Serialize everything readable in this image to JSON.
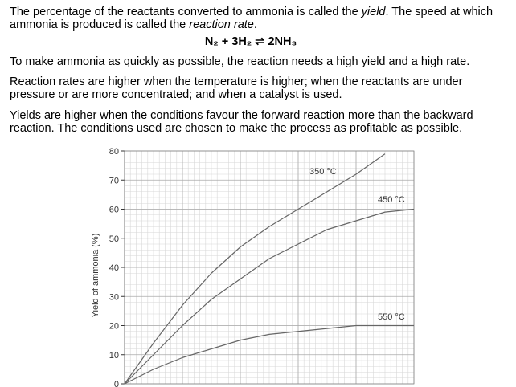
{
  "intro": [
    "The percentage of the reactants converted to ammonia is called the ",
    "yield",
    ". The speed at which",
    "ammonia is produced is called the ",
    "reaction rate",
    "."
  ],
  "equation": "N₂ + 3H₂ ⇌ 2NH₃",
  "paragraphs": [
    [
      "To make ammonia as quickly as possible, the reaction needs a high yield and a high rate."
    ],
    [
      "Reaction rates are higher when the temperature is higher; when the reactants are under",
      "pressure or are more concentrated; and when a catalyst is used."
    ],
    [
      "Yields are higher when the conditions favour the forward reaction more than the backward",
      "reaction. The conditions used are chosen to make the process as profitable as possible."
    ]
  ],
  "chart_data": {
    "type": "line",
    "y_label": "Yield of ammonia (%)",
    "x": [
      0,
      0.5,
      1,
      1.5,
      2,
      2.5,
      3,
      3.5,
      4,
      4.5,
      5
    ],
    "xlim": [
      0,
      5
    ],
    "ylim": [
      0,
      80
    ],
    "yticks": [
      0,
      10,
      20,
      30,
      40,
      50,
      60,
      70,
      80
    ],
    "grid": true,
    "series": [
      {
        "name": "350 °C",
        "color": "#666666",
        "values": [
          0,
          14,
          27,
          38,
          47,
          54,
          60,
          66,
          72,
          79,
          null
        ]
      },
      {
        "name": "450 °C",
        "color": "#666666",
        "values": [
          0,
          10,
          20,
          29,
          36,
          43,
          48,
          53,
          56,
          59,
          60
        ]
      },
      {
        "name": "550 °C",
        "color": "#666666",
        "values": [
          0,
          5,
          9,
          12,
          15,
          17,
          18,
          19,
          20,
          20,
          20
        ]
      }
    ]
  }
}
